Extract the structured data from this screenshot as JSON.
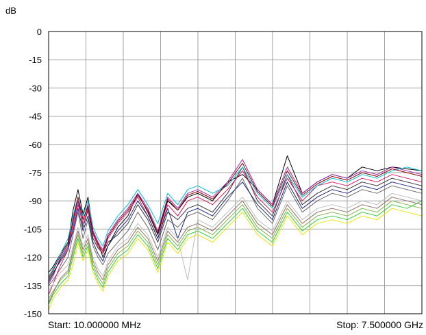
{
  "chart_data": {
    "type": "line",
    "ylabel": "dB",
    "ylim": [
      -150,
      0
    ],
    "yticks": [
      0,
      -15,
      -30,
      -45,
      -60,
      -75,
      -90,
      -105,
      -120,
      -135,
      -150
    ],
    "x_start_label": "Start: 10.000000 MHz",
    "x_stop_label": "Stop: 7.500000 GHz",
    "x_start_mhz": 10,
    "x_stop_mhz": 7500,
    "grid": true,
    "colors": {
      "background": "#ffffff",
      "grid": "#a0a0a0",
      "frame": "#000000"
    },
    "series": [
      {
        "color": "#000000",
        "x": [
          10,
          100,
          250,
          400,
          500,
          600,
          700,
          800,
          900,
          1000,
          1100,
          1200,
          1400,
          1600,
          1800,
          2000,
          2200,
          2400,
          2600,
          2800,
          3000,
          3300,
          3600,
          3900,
          4200,
          4500,
          4800,
          5100,
          5400,
          5700,
          6000,
          6300,
          6600,
          6900,
          7200,
          7500
        ],
        "y": [
          -128,
          -125,
          -118,
          -112,
          -95,
          -84,
          -97,
          -88,
          -106,
          -112,
          -120,
          -114,
          -104,
          -98,
          -86,
          -96,
          -108,
          -90,
          -95,
          -88,
          -86,
          -90,
          -80,
          -76,
          -84,
          -92,
          -66,
          -86,
          -80,
          -76,
          -78,
          -72,
          -74,
          -72,
          -73,
          -74
        ]
      },
      {
        "color": "#333333",
        "x": [
          10,
          100,
          250,
          400,
          500,
          600,
          700,
          800,
          900,
          1000,
          1100,
          1200,
          1400,
          1600,
          1800,
          2000,
          2200,
          2400,
          2600,
          2800,
          3000,
          3300,
          3600,
          3900,
          4200,
          4500,
          4800,
          5100,
          5400,
          5700,
          6000,
          6300,
          6600,
          6900,
          7200,
          7500
        ],
        "y": [
          -132,
          -128,
          -122,
          -116,
          -100,
          -90,
          -104,
          -95,
          -110,
          -115,
          -118,
          -112,
          -108,
          -102,
          -92,
          -100,
          -112,
          -96,
          -100,
          -94,
          -92,
          -96,
          -86,
          -72,
          -90,
          -98,
          -76,
          -92,
          -86,
          -82,
          -84,
          -80,
          -82,
          -78,
          -80,
          -82
        ]
      },
      {
        "color": "#666666",
        "x": [
          10,
          100,
          250,
          400,
          500,
          600,
          700,
          800,
          900,
          1000,
          1100,
          1200,
          1400,
          1600,
          1800,
          2000,
          2200,
          2400,
          2600,
          2800,
          3000,
          3300,
          3600,
          3900,
          4200,
          4500,
          4800,
          5100,
          5400,
          5700,
          6000,
          6300,
          6600,
          6900,
          7200,
          7500
        ],
        "y": [
          -135,
          -132,
          -126,
          -120,
          -108,
          -96,
          -110,
          -100,
          -114,
          -120,
          -124,
          -118,
          -112,
          -106,
          -96,
          -104,
          -116,
          -100,
          -104,
          -98,
          -96,
          -100,
          -90,
          -78,
          -94,
          -102,
          -82,
          -96,
          -90,
          -86,
          -88,
          -84,
          -86,
          -82,
          -84,
          -86
        ]
      },
      {
        "color": "#d81b60",
        "x": [
          10,
          100,
          250,
          400,
          500,
          600,
          700,
          800,
          900,
          1000,
          1100,
          1200,
          1400,
          1600,
          1800,
          2000,
          2200,
          2400,
          2600,
          2800,
          3000,
          3300,
          3600,
          3900,
          4200,
          4500,
          4800,
          5100,
          5400,
          5700,
          6000,
          6300,
          6600,
          6900,
          7200,
          7500
        ],
        "y": [
          -140,
          -134,
          -124,
          -116,
          -104,
          -92,
          -102,
          -94,
          -108,
          -114,
          -118,
          -110,
          -102,
          -96,
          -88,
          -98,
          -110,
          -92,
          -98,
          -90,
          -88,
          -92,
          -84,
          -74,
          -88,
          -96,
          -78,
          -90,
          -82,
          -80,
          -82,
          -78,
          -80,
          -76,
          -78,
          -80
        ]
      },
      {
        "color": "#9c27b0",
        "x": [
          10,
          100,
          250,
          400,
          500,
          600,
          700,
          800,
          900,
          1000,
          1100,
          1200,
          1400,
          1600,
          1800,
          2000,
          2200,
          2400,
          2600,
          2800,
          3000,
          3300,
          3600,
          3900,
          4200,
          4500,
          4800,
          5100,
          5400,
          5700,
          6000,
          6300,
          6600,
          6900,
          7200,
          7500
        ],
        "y": [
          -134,
          -130,
          -120,
          -114,
          -102,
          -90,
          -100,
          -92,
          -106,
          -112,
          -116,
          -108,
          -100,
          -94,
          -86,
          -94,
          -106,
          -88,
          -94,
          -86,
          -84,
          -88,
          -80,
          -68,
          -84,
          -92,
          -72,
          -86,
          -80,
          -76,
          -78,
          -74,
          -76,
          -72,
          -74,
          -76
        ]
      },
      {
        "color": "#00bcd4",
        "x": [
          10,
          100,
          250,
          400,
          500,
          600,
          700,
          800,
          900,
          1000,
          1100,
          1200,
          1400,
          1600,
          1800,
          2000,
          2200,
          2400,
          2600,
          2800,
          3000,
          3300,
          3600,
          3900,
          4200,
          4500,
          4800,
          5100,
          5400,
          5700,
          6000,
          6300,
          6600,
          6900,
          7200,
          7500
        ],
        "y": [
          -130,
          -126,
          -118,
          -110,
          -98,
          -88,
          -98,
          -90,
          -104,
          -110,
          -114,
          -106,
          -98,
          -92,
          -84,
          -92,
          -102,
          -86,
          -92,
          -84,
          -82,
          -86,
          -82,
          -72,
          -86,
          -94,
          -76,
          -88,
          -82,
          -78,
          -80,
          -76,
          -78,
          -74,
          -72,
          -74
        ]
      },
      {
        "color": "#1a237e",
        "x": [
          10,
          100,
          250,
          400,
          500,
          600,
          700,
          800,
          900,
          1000,
          1100,
          1200,
          1400,
          1600,
          1800,
          2000,
          2200,
          2400,
          2600,
          2800,
          3000,
          3300,
          3600,
          3900,
          4200,
          4500,
          4800,
          5100,
          5400,
          5700,
          6000,
          6300,
          6600,
          6900,
          7200,
          7500
        ],
        "y": [
          -133,
          -129,
          -121,
          -115,
          -106,
          -94,
          -106,
          -98,
          -112,
          -118,
          -122,
          -114,
          -106,
          -100,
          -90,
          -98,
          -110,
          -94,
          -110,
          -96,
          -94,
          -98,
          -88,
          -80,
          -92,
          -100,
          -80,
          -94,
          -88,
          -84,
          -86,
          -82,
          -84,
          -80,
          -82,
          -84
        ]
      },
      {
        "color": "#8b0000",
        "x": [
          10,
          100,
          250,
          400,
          500,
          600,
          700,
          800,
          900,
          1000,
          1100,
          1200,
          1400,
          1600,
          1800,
          2000,
          2200,
          2400,
          2600,
          2800,
          3000,
          3300,
          3600,
          3900,
          4200,
          4500,
          4800,
          5100,
          5400,
          5700,
          6000,
          6300,
          6600,
          6900,
          7200,
          7500
        ],
        "y": [
          -131,
          -127,
          -119,
          -113,
          -100,
          -88,
          -100,
          -93,
          -107,
          -113,
          -117,
          -109,
          -101,
          -95,
          -87,
          -95,
          -107,
          -89,
          -95,
          -87,
          -85,
          -89,
          -81,
          -70,
          -85,
          -93,
          -74,
          -87,
          -81,
          -77,
          -79,
          -75,
          -77,
          -73,
          -75,
          -77
        ]
      },
      {
        "color": "#7cb342",
        "x": [
          10,
          100,
          250,
          400,
          500,
          600,
          700,
          800,
          900,
          1000,
          1100,
          1200,
          1400,
          1600,
          1800,
          2000,
          2200,
          2400,
          2600,
          2800,
          3000,
          3300,
          3600,
          3900,
          4200,
          4500,
          4800,
          5100,
          5400,
          5700,
          6000,
          6300,
          6600,
          6900,
          7200,
          7500
        ],
        "y": [
          -142,
          -138,
          -132,
          -128,
          -118,
          -108,
          -118,
          -112,
          -124,
          -130,
          -134,
          -126,
          -118,
          -114,
          -106,
          -112,
          -124,
          -108,
          -114,
          -106,
          -104,
          -108,
          -100,
          -92,
          -104,
          -110,
          -94,
          -104,
          -98,
          -96,
          -98,
          -94,
          -96,
          -90,
          -92,
          -94
        ]
      },
      {
        "color": "#32cd32",
        "x": [
          10,
          100,
          250,
          400,
          500,
          600,
          700,
          800,
          900,
          1000,
          1100,
          1200,
          1400,
          1600,
          1800,
          2000,
          2200,
          2400,
          2600,
          2800,
          3000,
          3300,
          3600,
          3900,
          4200,
          4500,
          4800,
          5100,
          5400,
          5700,
          6000,
          6300,
          6600,
          6900,
          7200,
          7500
        ],
        "y": [
          -145,
          -140,
          -134,
          -130,
          -120,
          -110,
          -120,
          -114,
          -126,
          -132,
          -136,
          -128,
          -120,
          -116,
          -108,
          -114,
          -126,
          -110,
          -116,
          -108,
          -106,
          -110,
          -102,
          -94,
          -106,
          -112,
          -96,
          -106,
          -100,
          -98,
          -100,
          -96,
          -98,
          -92,
          -94,
          -90
        ]
      },
      {
        "color": "#e6e600",
        "x": [
          10,
          100,
          250,
          400,
          500,
          600,
          700,
          800,
          900,
          1000,
          1100,
          1200,
          1400,
          1600,
          1800,
          2000,
          2200,
          2400,
          2600,
          2800,
          3000,
          3300,
          3600,
          3900,
          4200,
          4500,
          4800,
          5100,
          5400,
          5700,
          6000,
          6300,
          6600,
          6900,
          7200,
          7500
        ],
        "y": [
          -148,
          -142,
          -136,
          -132,
          -124,
          -112,
          -122,
          -116,
          -128,
          -134,
          -138,
          -130,
          -122,
          -118,
          -110,
          -116,
          -128,
          -112,
          -118,
          -110,
          -108,
          -112,
          -104,
          -96,
          -108,
          -114,
          -98,
          -108,
          -102,
          -100,
          -102,
          -98,
          -100,
          -94,
          -96,
          -98
        ]
      },
      {
        "color": "#8d6e63",
        "x": [
          10,
          100,
          250,
          400,
          500,
          600,
          700,
          800,
          900,
          1000,
          1100,
          1200,
          1400,
          1600,
          1800,
          2000,
          2200,
          2400,
          2600,
          2800,
          3000,
          3300,
          3600,
          3900,
          4200,
          4500,
          4800,
          5100,
          5400,
          5700,
          6000,
          6300,
          6600,
          6900,
          7200,
          7500
        ],
        "y": [
          -144,
          -139,
          -131,
          -127,
          -116,
          -106,
          -116,
          -110,
          -122,
          -128,
          -132,
          -124,
          -116,
          -112,
          -104,
          -110,
          -122,
          -106,
          -112,
          -104,
          -102,
          -106,
          -98,
          -90,
          -102,
          -108,
          -92,
          -102,
          -96,
          -94,
          -96,
          -92,
          -94,
          -88,
          -90,
          -92
        ]
      },
      {
        "color": "#bdbdbd",
        "x": [
          10,
          100,
          250,
          400,
          500,
          600,
          700,
          800,
          900,
          1000,
          1100,
          1200,
          1400,
          1600,
          1800,
          2000,
          2200,
          2400,
          2600,
          2800,
          3000,
          3300,
          3600,
          3900,
          4200,
          4500,
          4800,
          5100,
          5400,
          5700,
          6000,
          6300,
          6600,
          6900,
          7200,
          7500
        ],
        "y": [
          -138,
          -134,
          -128,
          -124,
          -114,
          -104,
          -114,
          -108,
          -120,
          -126,
          -130,
          -122,
          -114,
          -110,
          -102,
          -108,
          -120,
          -104,
          -110,
          -132,
          -100,
          -104,
          -96,
          -88,
          -100,
          -106,
          -90,
          -100,
          -94,
          -92,
          -94,
          -90,
          -92,
          -86,
          -88,
          -90
        ]
      }
    ]
  }
}
